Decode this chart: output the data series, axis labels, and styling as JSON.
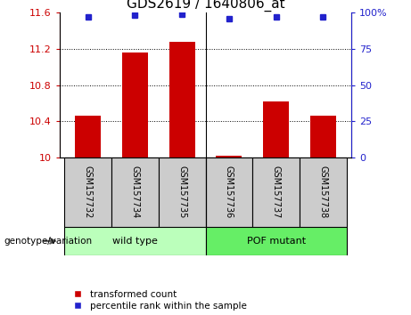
{
  "title": "GDS2619 / 1640806_at",
  "samples": [
    "GSM157732",
    "GSM157734",
    "GSM157735",
    "GSM157736",
    "GSM157737",
    "GSM157738"
  ],
  "bar_values": [
    10.46,
    11.16,
    11.28,
    10.02,
    10.62,
    10.46
  ],
  "percentile_values": [
    97,
    98,
    99,
    96,
    97,
    97
  ],
  "ylim_left": [
    10,
    11.6
  ],
  "ylim_right": [
    0,
    100
  ],
  "yticks_left": [
    10,
    10.4,
    10.8,
    11.2,
    11.6
  ],
  "ytick_labels_left": [
    "10",
    "10.4",
    "10.8",
    "11.2",
    "11.6"
  ],
  "yticks_right": [
    0,
    25,
    50,
    75,
    100
  ],
  "ytick_labels_right": [
    "0",
    "25",
    "50",
    "75",
    "100%"
  ],
  "grid_values": [
    10.4,
    10.8,
    11.2
  ],
  "bar_color": "#cc0000",
  "dot_color": "#2222cc",
  "group_wt_label": "wild type",
  "group_pof_label": "POF mutant",
  "group_wt_color": "#bbffbb",
  "group_pof_color": "#66ee66",
  "group_label_text": "genotype/variation",
  "sample_bg_color": "#cccccc",
  "legend_items": [
    {
      "label": "transformed count",
      "color": "#cc0000"
    },
    {
      "label": "percentile rank within the sample",
      "color": "#2222cc"
    }
  ],
  "title_fontsize": 11,
  "bar_width": 0.55
}
